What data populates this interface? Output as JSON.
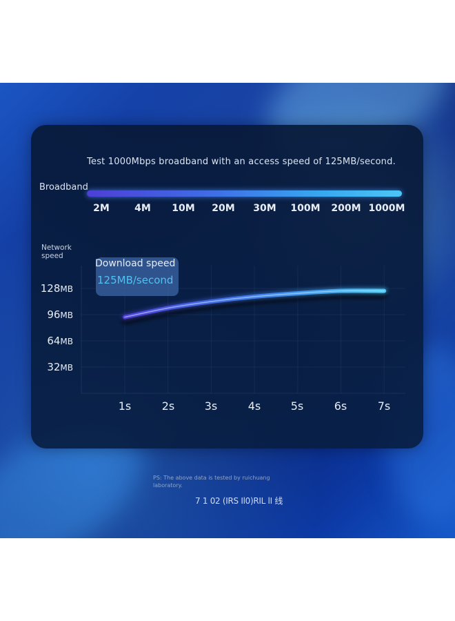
{
  "test_text": "Test 1000Mbps broadband with an access speed of 125MB/second.",
  "broadband": {
    "label": "Broadband",
    "ticks": [
      "2M",
      "4M",
      "10M",
      "20M",
      "30M",
      "100M",
      "200M",
      "1000M"
    ]
  },
  "badge": {
    "label": "Download speed",
    "value": "125MB/second"
  },
  "ps_note": "PS: The above data is tested by ruichuang laboratory.",
  "product_code": "7 1 02 (IRS Il0)RIL lI 线",
  "colors": {
    "line_start": "#5040d8",
    "line_end": "#4cc6f6",
    "panel_bg": "#0a1d3e",
    "badge_value": "#52c1f2"
  },
  "chart_data": {
    "type": "line",
    "title": "",
    "ylabel": "Network speed",
    "xlabel": "",
    "x": [
      "1s",
      "2s",
      "3s",
      "4s",
      "5s",
      "6s",
      "7s"
    ],
    "y_ticks": [
      {
        "value": 32,
        "label": "32",
        "unit": "MB"
      },
      {
        "value": 64,
        "label": "64",
        "unit": "MB"
      },
      {
        "value": 96,
        "label": "96",
        "unit": "MB"
      },
      {
        "value": 128,
        "label": "128",
        "unit": "MB"
      }
    ],
    "series": [
      {
        "values": [
          93,
          104,
          112,
          118,
          122,
          125,
          125
        ]
      }
    ],
    "ylim": [
      0,
      140
    ],
    "grid": true
  }
}
